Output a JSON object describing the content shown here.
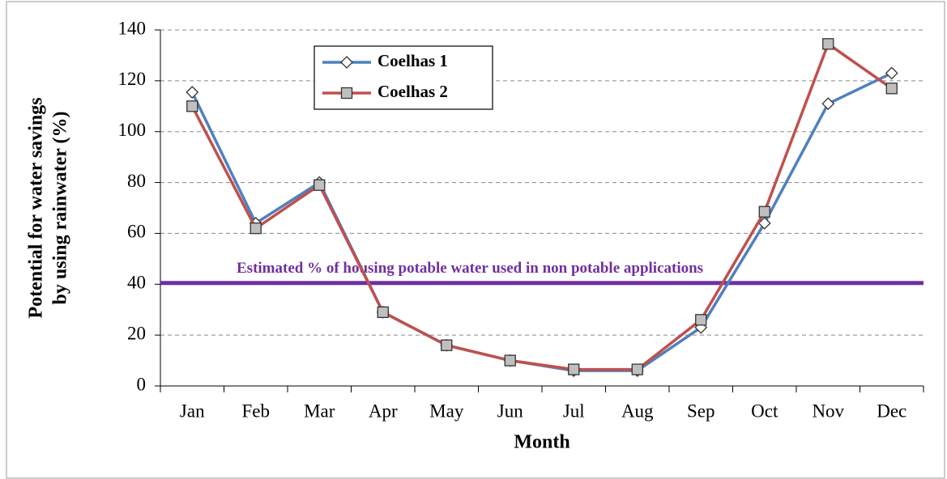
{
  "chart_data": {
    "type": "line",
    "x_label": "Month",
    "y_label": [
      "Potential for water savings",
      "by using rainwater  (%)"
    ],
    "categories": [
      "Jan",
      "Feb",
      "Mar",
      "Apr",
      "May",
      "Jun",
      "Jul",
      "Aug",
      "Sep",
      "Oct",
      "Nov",
      "Dec"
    ],
    "series": [
      {
        "name": "Coelhas 1",
        "color": "#4f81bd",
        "marker": "diamond",
        "values": [
          115.5,
          64,
          80,
          29,
          16,
          10,
          6,
          6,
          23,
          64,
          111,
          123
        ]
      },
      {
        "name": "Coelhas 2",
        "color": "#c0504d",
        "marker": "square",
        "values": [
          110,
          62,
          79,
          29,
          16,
          10,
          6.5,
          6.5,
          26,
          68.5,
          134.5,
          117
        ]
      }
    ],
    "reference_line": {
      "value": 40.5,
      "color": "#7030a0",
      "label": "Estimated  % of housing potable water  used in non potable applications"
    },
    "ylim": [
      0,
      140
    ],
    "yticks": [
      0,
      20,
      40,
      60,
      80,
      100,
      120,
      140
    ],
    "grid": true
  }
}
